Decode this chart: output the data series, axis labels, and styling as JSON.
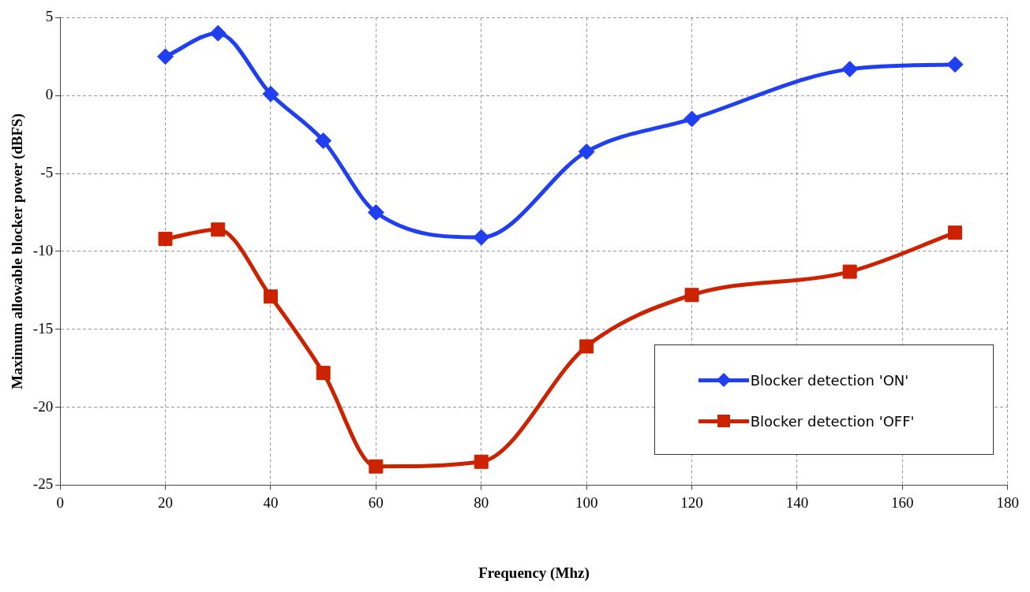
{
  "chart_data": {
    "type": "line",
    "xlabel": "Frequency (Mhz)",
    "ylabel": "Maximum allowable blocker power (dBFS)",
    "x": [
      20,
      30,
      40,
      50,
      60,
      80,
      100,
      120,
      150,
      170
    ],
    "series": [
      {
        "name": "Blocker detection 'ON'",
        "color": "#1f3ff0",
        "marker": "diamond",
        "values": [
          2.5,
          4.0,
          0.1,
          -2.9,
          -7.5,
          -9.1,
          -3.6,
          -1.5,
          1.7,
          2.0
        ]
      },
      {
        "name": "Blocker detection 'OFF'",
        "color": "#cc2200",
        "marker": "square",
        "values": [
          -9.2,
          -8.6,
          -12.9,
          -17.8,
          -23.8,
          -23.5,
          -16.1,
          -12.8,
          -11.3,
          -8.8
        ]
      }
    ],
    "xlim": [
      0,
      180
    ],
    "xticks": [
      0,
      20,
      40,
      60,
      80,
      100,
      120,
      140,
      160,
      180
    ],
    "ylim": [
      -25,
      5
    ],
    "yticks": [
      -25,
      -20,
      -15,
      -10,
      -5,
      0,
      5
    ],
    "grid": true,
    "line_style": "solid",
    "legend": "bottom right"
  }
}
